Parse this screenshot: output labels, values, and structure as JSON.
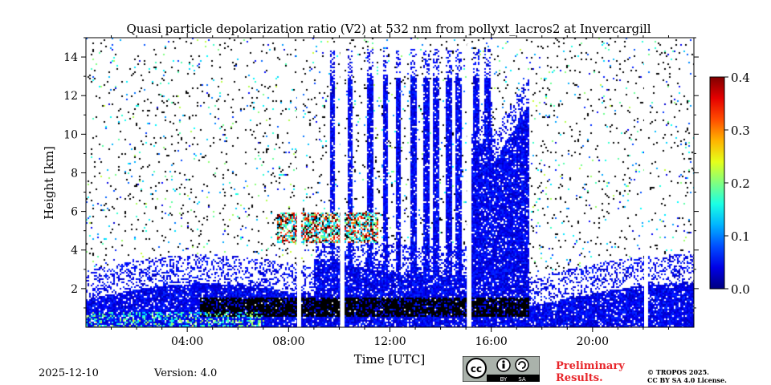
{
  "chart_data": {
    "type": "heatmap",
    "title": "Quasi particle depolarization ratio (V2) at 532 nm from pollyxt_lacros2 at Invercargill",
    "xlabel": "Time [UTC]",
    "ylabel": "Height [km]",
    "xlim": [
      0,
      24
    ],
    "ylim": [
      0,
      15
    ],
    "x_ticks": [
      {
        "value": 4,
        "label": "04:00"
      },
      {
        "value": 8,
        "label": "08:00"
      },
      {
        "value": 12,
        "label": "12:00"
      },
      {
        "value": 16,
        "label": "16:00"
      },
      {
        "value": 20,
        "label": "20:00"
      }
    ],
    "y_ticks": [
      {
        "value": 2,
        "label": "2"
      },
      {
        "value": 4,
        "label": "4"
      },
      {
        "value": 6,
        "label": "6"
      },
      {
        "value": 8,
        "label": "8"
      },
      {
        "value": 10,
        "label": "10"
      },
      {
        "value": 12,
        "label": "12"
      },
      {
        "value": 14,
        "label": "14"
      }
    ],
    "colorbar": {
      "range": [
        0.0,
        0.4
      ],
      "ticks": [
        {
          "value": 0.0,
          "label": "0.0"
        },
        {
          "value": 0.1,
          "label": "0.1"
        },
        {
          "value": 0.2,
          "label": "0.2"
        },
        {
          "value": 0.3,
          "label": "0.3"
        },
        {
          "value": 0.4,
          "label": "0.4"
        }
      ],
      "colormap": "jet"
    },
    "features": {
      "data_gaps_hours": [
        8.4,
        10.1,
        15.1,
        22.1
      ],
      "cloud_columns_hours": [
        9.7,
        10.4,
        11.2,
        11.8,
        12.3,
        12.9,
        13.4,
        13.8,
        14.3,
        14.7,
        15.4,
        15.8
      ],
      "low_cloud_km": [
        0.6,
        1.6
      ],
      "mid_cloud_km": [
        4.4,
        6.0
      ],
      "signal_end_hour": 24
    }
  },
  "footer": {
    "date": "2025-12-10",
    "version": "Version: 4.0",
    "preliminary_line1": "Preliminary",
    "preliminary_line2": "Results.",
    "copyright_line1": "© TROPOS 2025.",
    "copyright_line2": "CC BY SA 4.0 License.",
    "license_badge": {
      "by": "BY",
      "sa": "SA"
    }
  },
  "colors": {
    "gap": "#ffffff",
    "low_depol": "#1f56d8",
    "black_cloud": "#000000"
  }
}
